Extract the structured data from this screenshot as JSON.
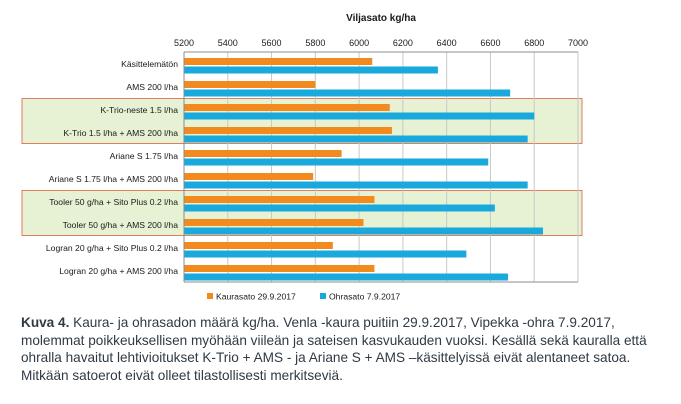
{
  "chart_data": {
    "type": "bar",
    "orientation": "horizontal",
    "title": "Viljasato kg/ha",
    "xlim": [
      5200,
      7000
    ],
    "xticks": [
      "5200",
      "5400",
      "5600",
      "5800",
      "6000",
      "6200",
      "6400",
      "6600",
      "6800",
      "7000"
    ],
    "grid": true,
    "legend_position": "bottom",
    "categories": [
      "Käsittelemätön",
      "AMS 200 l/ha",
      "K-Trio-neste 1.5 l/ha",
      "K-Trio 1.5 l/ha + AMS 200 l/ha",
      "Ariane S 1.75 l/ha",
      "Ariane S 1.75 l/ha + AMS 200 l/ha",
      "Tooler 50 g/ha + Sito Plus 0.2 l/ha",
      "Tooler 50 g/ha + AMS 200 l/ha",
      "Logran 20 g/ha + Sito Plus 0.2 l/ha",
      "Logran 20 g/ha + AMS 200 l/ha"
    ],
    "series": [
      {
        "name": "Kaurasato 29.9.2017",
        "color": "#f28a1e",
        "values": [
          6060,
          5800,
          6140,
          6150,
          5920,
          5790,
          6070,
          6020,
          5880,
          6070
        ]
      },
      {
        "name": "Ohrasato 7.9.2017",
        "color": "#1aa9dd",
        "values": [
          6360,
          6690,
          6800,
          6770,
          6590,
          6770,
          6620,
          6840,
          6490,
          6680
        ]
      }
    ],
    "highlight_groups": [
      [
        2,
        3
      ],
      [
        6,
        7
      ]
    ],
    "highlight_color": "#e6f2d3",
    "highlight_border": "#e07d5a"
  },
  "caption": {
    "label": "Kuva 4.",
    "text": " Kaura- ja ohrasadon määrä kg/ha. Venla -kaura puitiin 29.9.2017, Vipekka -ohra 7.9.2017, molemmat poikkeuksellisen myöhään viileän ja sateisen kasvukauden vuoksi. Kesällä sekä kauralla että ohralla havaitut lehtivioitukset K-Trio + AMS - ja  Ariane S + AMS –käsittelyissä eivät alentaneet satoa. Mitkään satoerot eivät olleet tilastollisesti merkitseviä."
  }
}
